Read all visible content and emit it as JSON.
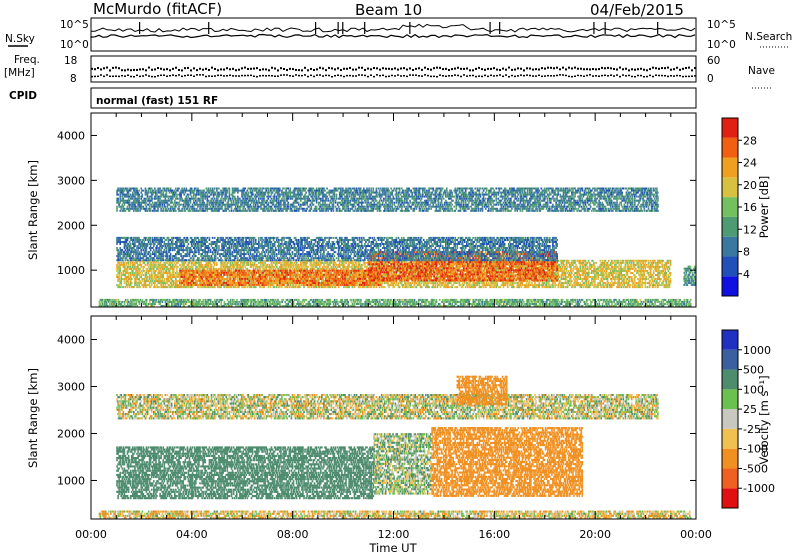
{
  "header": {
    "station": "McMurdo (fitACF)",
    "beam": "Beam 10",
    "date": "04/Feb/2015",
    "mode": "normal (fast) 151 RF"
  },
  "summary_panels": {
    "nsky_label": "N.Sky",
    "nsky_ticks": [
      "10^5",
      "10^0"
    ],
    "nsearch_label": "N.Search",
    "nsearch_ticks": [
      "10^5",
      "10^0"
    ],
    "freq_label": "Freq.",
    "freq_unit": "[MHz]",
    "freq_ticks": [
      "18",
      "8"
    ],
    "nave_label": "Nave",
    "nave_ticks": [
      "60",
      "0"
    ],
    "cpid_label": "CPID"
  },
  "colors": {
    "power": [
      "#1010e0",
      "#2050b8",
      "#3a78a0",
      "#4e9a72",
      "#74c060",
      "#d8c040",
      "#f0a020",
      "#f06010",
      "#e02010"
    ],
    "velocity": [
      "#2030c0",
      "#3a60a0",
      "#4e8c6e",
      "#6cc050",
      "#c8c8c0",
      "#f0c050",
      "#f09020",
      "#f06020",
      "#e01010"
    ]
  },
  "chart_data": [
    {
      "type": "heatmap",
      "name": "power",
      "xlabel": "",
      "ylabel": "Slant Range [km]",
      "xlim": [
        "00:00",
        "00:00"
      ],
      "ylim": [
        180,
        4500
      ],
      "xticks": [
        "00:00",
        "04:00",
        "08:00",
        "12:00",
        "16:00",
        "20:00",
        "00:00"
      ],
      "yticks": [
        1000,
        2000,
        3000,
        4000
      ],
      "colorbar": {
        "label": "Power [dB]",
        "min": 0,
        "max": 32,
        "ticks": [
          4,
          8,
          12,
          16,
          20,
          24,
          28
        ]
      },
      "bands": [
        {
          "start_hr": 0.3,
          "end_hr": 23.8,
          "range_km": [
            180,
            320
          ],
          "db": 14
        },
        {
          "start_hr": 1.0,
          "end_hr": 23.0,
          "range_km": [
            600,
            1200
          ],
          "db": 20
        },
        {
          "start_hr": 3.5,
          "end_hr": 11.5,
          "range_km": [
            650,
            1000
          ],
          "db": 26
        },
        {
          "start_hr": 11.0,
          "end_hr": 18.5,
          "range_km": [
            750,
            1400
          ],
          "db": 27
        },
        {
          "start_hr": 1.0,
          "end_hr": 18.5,
          "range_km": [
            1200,
            1700
          ],
          "db": 9
        },
        {
          "start_hr": 1.0,
          "end_hr": 22.5,
          "range_km": [
            2300,
            2800
          ],
          "db": 10
        },
        {
          "start_hr": 23.5,
          "end_hr": 24.0,
          "range_km": [
            650,
            1100
          ],
          "db": 12
        }
      ]
    },
    {
      "type": "heatmap",
      "name": "velocity",
      "xlabel": "Time UT",
      "ylabel": "Slant Range [km]",
      "xlim": [
        "00:00",
        "00:00"
      ],
      "ylim": [
        180,
        4500
      ],
      "xticks": [
        "00:00",
        "04:00",
        "08:00",
        "12:00",
        "16:00",
        "20:00",
        "00:00"
      ],
      "yticks": [
        1000,
        2000,
        3000,
        4000
      ],
      "colorbar": {
        "label": "Velocity [m s⁻¹]",
        "ticks": [
          "1000",
          "500",
          "100",
          "25",
          "-25",
          "-100",
          "-500",
          "-1000"
        ]
      },
      "bands": [
        {
          "start_hr": 0.3,
          "end_hr": 23.8,
          "range_km": [
            180,
            320
          ],
          "velocity": -50
        },
        {
          "start_hr": 1.0,
          "end_hr": 11.2,
          "range_km": [
            600,
            1700
          ],
          "velocity": 300
        },
        {
          "start_hr": 11.2,
          "end_hr": 13.5,
          "range_km": [
            700,
            2000
          ],
          "velocity": 60
        },
        {
          "start_hr": 13.5,
          "end_hr": 19.5,
          "range_km": [
            650,
            2100
          ],
          "velocity": -300
        },
        {
          "start_hr": 1.0,
          "end_hr": 22.5,
          "range_km": [
            2300,
            2800
          ],
          "velocity": 0
        },
        {
          "start_hr": 14.5,
          "end_hr": 16.5,
          "range_km": [
            2600,
            3200
          ],
          "velocity": -300
        }
      ]
    }
  ]
}
